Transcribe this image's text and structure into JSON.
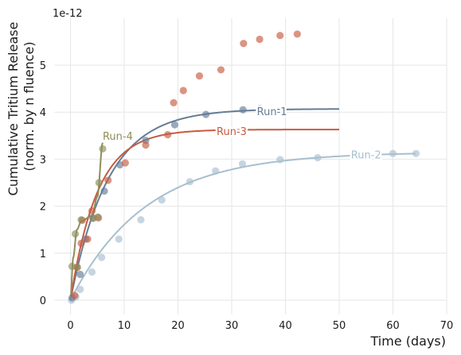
{
  "chart_data": {
    "type": "scatter",
    "xlabel": "Time (days)",
    "ylabel_line1": "Cumulative Tritium Release",
    "ylabel_line2": "(norm. by n fluence)",
    "y_offset_text": "1e-12",
    "xlim": [
      -3,
      70
    ],
    "ylim": [
      -0.3,
      6.0
    ],
    "x_ticks": [
      0,
      10,
      20,
      30,
      40,
      50,
      60,
      70
    ],
    "y_ticks": [
      0,
      1,
      2,
      3,
      4,
      5
    ],
    "grid": true,
    "series": [
      {
        "name": "Run-1",
        "color": "#647d96",
        "points": [
          [
            0.3,
            0.05
          ],
          [
            1.8,
            0.55
          ],
          [
            2.8,
            1.3
          ],
          [
            4.2,
            1.75
          ],
          [
            6.3,
            2.32
          ],
          [
            9.2,
            2.88
          ],
          [
            14.0,
            3.4
          ],
          [
            19.4,
            3.73
          ],
          [
            25.2,
            3.95
          ],
          [
            32.1,
            4.05
          ],
          [
            35.2,
            4.08
          ]
        ],
        "curve_plateau": 4.07,
        "curve_tau": 7.0,
        "curve_end": 50,
        "label_at": [
          37.5,
          4.02
        ]
      },
      {
        "name": "Run-2",
        "color": "#a7bfcf",
        "points": [
          [
            0.2,
            0.0
          ],
          [
            1.0,
            0.07
          ],
          [
            1.8,
            0.23
          ],
          [
            4.0,
            0.6
          ],
          [
            5.8,
            0.91
          ],
          [
            9.0,
            1.3
          ],
          [
            13.1,
            1.71
          ],
          [
            17.0,
            2.13
          ],
          [
            22.2,
            2.52
          ],
          [
            27.0,
            2.75
          ],
          [
            32.0,
            2.9
          ],
          [
            39.0,
            2.99
          ],
          [
            46.0,
            3.03
          ],
          [
            60.0,
            3.12
          ],
          [
            64.3,
            3.12
          ]
        ],
        "curve_plateau": 3.15,
        "curve_tau": 14.0,
        "curve_end": 64.3,
        "label_at": [
          55.0,
          3.1
        ]
      },
      {
        "name": "Run-3",
        "color": "#c75b3f",
        "points": [
          [
            0.8,
            0.1
          ],
          [
            1.2,
            0.7
          ],
          [
            2.0,
            1.21
          ],
          [
            2.2,
            1.7
          ],
          [
            3.2,
            1.3
          ],
          [
            4.0,
            1.9
          ],
          [
            5.2,
            1.75
          ],
          [
            7.0,
            2.55
          ],
          [
            10.2,
            2.92
          ],
          [
            14.0,
            3.3
          ],
          [
            18.1,
            3.52
          ],
          [
            19.2,
            4.2
          ],
          [
            21.0,
            4.46
          ],
          [
            24.0,
            4.77
          ],
          [
            28.0,
            4.9
          ],
          [
            32.2,
            5.46
          ],
          [
            35.2,
            5.55
          ],
          [
            39.0,
            5.63
          ],
          [
            42.2,
            5.66
          ]
        ],
        "curve_plateau": 3.63,
        "curve_tau": 5.0,
        "curve_end": 50,
        "label_at": [
          30.0,
          3.6
        ]
      },
      {
        "name": "Run-4",
        "color": "#8f8d5a",
        "points": [
          [
            0.3,
            0.72
          ],
          [
            0.9,
            1.41
          ],
          [
            1.3,
            0.7
          ],
          [
            2.0,
            1.71
          ],
          [
            4.2,
            1.74
          ],
          [
            5.1,
            1.77
          ],
          [
            5.3,
            2.5
          ],
          [
            6.0,
            3.22
          ]
        ],
        "curve_end": 6.0,
        "label_at": [
          8.8,
          3.5
        ]
      }
    ]
  }
}
